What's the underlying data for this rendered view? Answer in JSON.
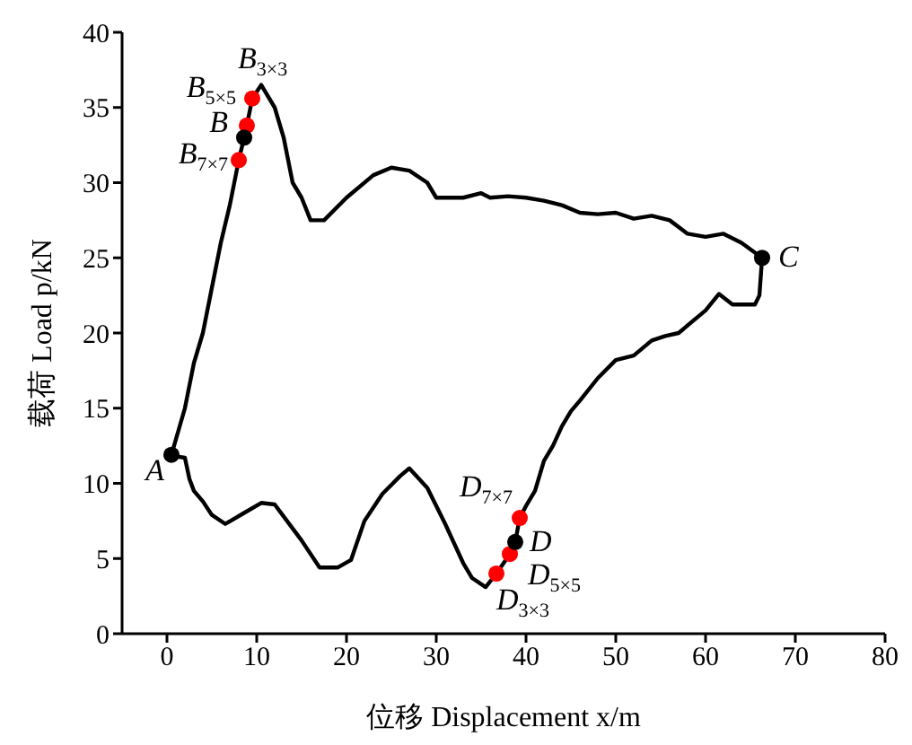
{
  "chart_data": {
    "type": "line",
    "xlabel": "位移 Displacement x/m",
    "ylabel": "载荷 Load p/kN",
    "xlim": [
      -5,
      80
    ],
    "xticks": [
      0,
      10,
      20,
      30,
      40,
      50,
      60,
      70,
      80
    ],
    "ylim": [
      0,
      40
    ],
    "yticks": [
      0,
      5,
      10,
      15,
      20,
      25,
      30,
      35,
      40
    ],
    "grid": false,
    "series": [
      {
        "color": "#000000",
        "marker": "none",
        "x": [
          0.5,
          2,
          2.5,
          3,
          4,
          5,
          6,
          7,
          8,
          8.6,
          8.9,
          9.5,
          10.5,
          12,
          13,
          14,
          15,
          16,
          17.5,
          20,
          23,
          25,
          27,
          29,
          30,
          33,
          35,
          36,
          38,
          40,
          42,
          44,
          46,
          48,
          50,
          52,
          54,
          56,
          58,
          60,
          62,
          64,
          66.3
        ],
        "values": [
          11.9,
          15,
          16.5,
          18,
          20,
          23,
          26,
          28.5,
          31.5,
          33,
          33.8,
          35.6,
          36.5,
          35,
          33,
          30,
          29,
          27.5,
          27.5,
          29,
          30.5,
          31,
          30.8,
          30,
          29,
          29,
          29.3,
          29,
          29.1,
          29,
          28.8,
          28.5,
          28,
          27.9,
          28,
          27.6,
          27.8,
          27.5,
          26.6,
          26.4,
          26.6,
          26,
          25
        ]
      },
      {
        "color": "#000000",
        "marker": "none",
        "x": [
          66.3,
          66,
          65.5,
          63,
          61.5,
          60,
          57,
          55.5,
          54,
          52,
          50,
          48,
          46,
          45,
          44,
          43,
          42,
          41,
          40,
          39.3,
          38.8,
          38.2,
          36.7,
          35.5,
          34,
          33,
          31,
          29,
          27,
          26,
          24,
          22,
          20.5,
          19,
          17,
          15,
          13,
          12,
          10.5,
          8.5,
          6.5,
          5,
          4,
          3,
          2.5,
          2,
          1,
          0.5
        ],
        "values": [
          25,
          22.5,
          21.9,
          21.9,
          22.6,
          21.5,
          20,
          19.8,
          19.5,
          18.5,
          18.2,
          17,
          15.5,
          14.8,
          13.8,
          12.5,
          11.5,
          9.5,
          8.5,
          7.7,
          6.1,
          5.3,
          4,
          3.1,
          3.7,
          4.7,
          7.3,
          9.7,
          11,
          10.5,
          9.3,
          7.5,
          4.9,
          4.4,
          4.4,
          6.2,
          7.8,
          8.6,
          8.7,
          8,
          7.3,
          7.9,
          8.8,
          9.5,
          10.3,
          11.7,
          11.8,
          11.9
        ]
      },
      {
        "type": "scatter",
        "color": "#ff0000",
        "marker": "circle",
        "x": [
          9.5,
          8.9,
          8,
          39.3,
          38.2,
          36.7
        ],
        "values": [
          35.6,
          33.8,
          31.5,
          7.7,
          5.3,
          4
        ]
      },
      {
        "type": "scatter",
        "color": "#000000",
        "marker": "circle",
        "x": [
          0.5,
          8.6,
          66.3,
          38.8
        ],
        "values": [
          11.9,
          33,
          25,
          6.1
        ]
      }
    ],
    "annotations": [
      {
        "text": "A",
        "x": 0.5,
        "y": 11.9
      },
      {
        "text": "B$_{3×3}$",
        "x": 9.5,
        "y": 35.6
      },
      {
        "text": "B$_{5×5}$",
        "x": 8.9,
        "y": 33.8
      },
      {
        "text": "B",
        "x": 8.6,
        "y": 33
      },
      {
        "text": "B$_{7×7}$",
        "x": 8,
        "y": 31.5
      },
      {
        "text": "C",
        "x": 66.3,
        "y": 25
      },
      {
        "text": "D$_{7×7}$",
        "x": 39.3,
        "y": 7.7
      },
      {
        "text": "D",
        "x": 38.8,
        "y": 6.1
      },
      {
        "text": "D$_{5×5}$",
        "x": 38.2,
        "y": 5.3
      },
      {
        "text": "D$_{3×3}$",
        "x": 36.7,
        "y": 4
      }
    ]
  }
}
